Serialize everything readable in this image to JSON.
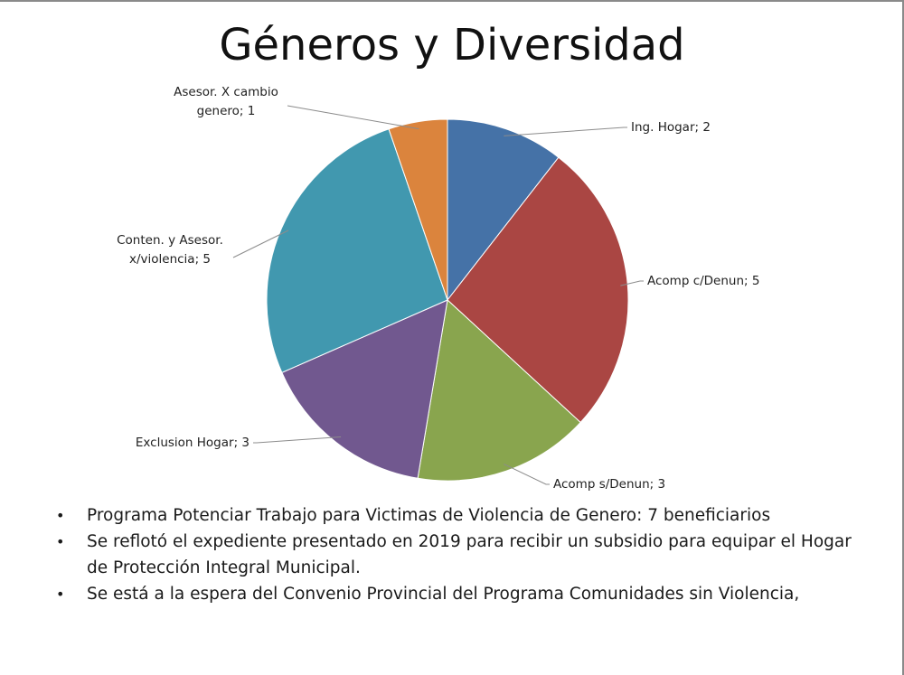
{
  "slide": {
    "title": "Géneros y Diversidad"
  },
  "chart_data": {
    "type": "pie",
    "title": "",
    "categories": [
      "Ing. Hogar",
      "Acomp c/Denun",
      "Acomp s/Denun",
      "Exclusion Hogar",
      "Conten. y Asesor. x/violencia",
      "Asesor. X cambio genero"
    ],
    "values": [
      2,
      5,
      3,
      3,
      5,
      1
    ],
    "labels": [
      [
        "Ing. Hogar; 2"
      ],
      [
        "Acomp c/Denun; 5"
      ],
      [
        "Acomp s/Denun; 3"
      ],
      [
        "Exclusion Hogar; 3"
      ],
      [
        "Conten. y Asesor.",
        "x/violencia; 5"
      ],
      [
        "Asesor. X cambio",
        "genero; 1"
      ]
    ],
    "colors": [
      "#4572A7",
      "#AA4643",
      "#89A54E",
      "#71588F",
      "#4198AF",
      "#DB843D"
    ],
    "legend": "none",
    "start": "top, clockwise"
  },
  "bullets": [
    "Programa Potenciar Trabajo para Victimas de Violencia de Genero: 7 beneficiarios",
    "Se reflotó el expediente presentado en 2019 para recibir un subsidio para equipar el Hogar de Protección Integral Municipal.",
    "Se está a la espera del Convenio Provincial del Programa Comunidades sin Violencia,"
  ]
}
